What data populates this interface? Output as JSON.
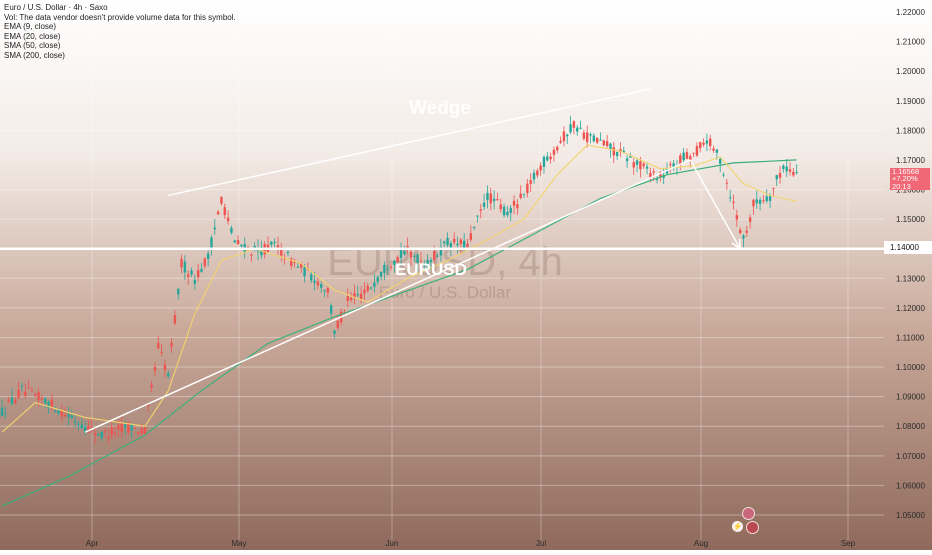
{
  "header": {
    "symbol_line": "Euro / U.S. Dollar · 4h · Saxo",
    "vol_line": "Vol: The data vendor doesn't provide volume data for this symbol.",
    "indicators": [
      "EMA (9, close)",
      "EMA (20, close)",
      "SMA (50, close)",
      "SMA (200, close)"
    ]
  },
  "watermark": {
    "symbol": "EURUSD, 4h",
    "name": "Euro / U.S. Dollar"
  },
  "annotations": {
    "wedge_label": "Wedge",
    "eurusd_label": "EURUSD"
  },
  "price_tag": {
    "price": "1.16568",
    "line2": "+7.20%",
    "line3": "20:13"
  },
  "level_tag": "1.14000",
  "colors": {
    "up": "#26a69a",
    "down": "#ef5350",
    "ema_fast": "#f3d36c",
    "sma_200": "#3cb07a",
    "annotation": "#ffffff",
    "price_tag": "#f06775"
  },
  "chart_data": {
    "type": "candlestick",
    "timeframe": "4h",
    "y_axis": {
      "ticks": [
        "1.22000",
        "1.21000",
        "1.20000",
        "1.19000",
        "1.18000",
        "1.17000",
        "1.16000",
        "1.15000",
        "1.14000",
        "1.13000",
        "1.12000",
        "1.11000",
        "1.10000",
        "1.09000",
        "1.08000",
        "1.07000",
        "1.06000",
        "1.05000"
      ],
      "range": [
        1.0475,
        1.2225
      ]
    },
    "x_axis": {
      "labels": [
        "Apr",
        "May",
        "Jun",
        "Jul",
        "Aug",
        "Sep"
      ]
    },
    "price_path": [
      [
        0,
        1.085
      ],
      [
        6,
        1.092
      ],
      [
        14,
        1.088
      ],
      [
        22,
        1.082
      ],
      [
        30,
        1.077
      ],
      [
        38,
        1.08
      ],
      [
        43,
        1.078
      ],
      [
        47,
        1.107
      ],
      [
        50,
        1.097
      ],
      [
        54,
        1.135
      ],
      [
        58,
        1.13
      ],
      [
        62,
        1.137
      ],
      [
        66,
        1.157
      ],
      [
        70,
        1.142
      ],
      [
        76,
        1.139
      ],
      [
        82,
        1.141
      ],
      [
        88,
        1.135
      ],
      [
        94,
        1.13
      ],
      [
        98,
        1.126
      ],
      [
        100,
        1.112
      ],
      [
        104,
        1.122
      ],
      [
        110,
        1.126
      ],
      [
        116,
        1.135
      ],
      [
        122,
        1.139
      ],
      [
        128,
        1.135
      ],
      [
        134,
        1.142
      ],
      [
        140,
        1.141
      ],
      [
        146,
        1.158
      ],
      [
        152,
        1.152
      ],
      [
        157,
        1.158
      ],
      [
        162,
        1.168
      ],
      [
        167,
        1.175
      ],
      [
        172,
        1.182
      ],
      [
        176,
        1.178
      ],
      [
        180,
        1.176
      ],
      [
        186,
        1.172
      ],
      [
        192,
        1.168
      ],
      [
        198,
        1.164
      ],
      [
        204,
        1.17
      ],
      [
        208,
        1.172
      ],
      [
        212,
        1.177
      ],
      [
        216,
        1.17
      ],
      [
        220,
        1.155
      ],
      [
        223,
        1.143
      ],
      [
        226,
        1.155
      ],
      [
        231,
        1.158
      ],
      [
        235,
        1.168
      ],
      [
        239,
        1.165
      ]
    ],
    "ema": [
      [
        0,
        1.078
      ],
      [
        10,
        1.088
      ],
      [
        25,
        1.083
      ],
      [
        43,
        1.08
      ],
      [
        50,
        1.092
      ],
      [
        58,
        1.118
      ],
      [
        66,
        1.136
      ],
      [
        76,
        1.14
      ],
      [
        90,
        1.135
      ],
      [
        100,
        1.126
      ],
      [
        110,
        1.122
      ],
      [
        122,
        1.13
      ],
      [
        134,
        1.136
      ],
      [
        146,
        1.143
      ],
      [
        157,
        1.15
      ],
      [
        167,
        1.165
      ],
      [
        176,
        1.175
      ],
      [
        186,
        1.173
      ],
      [
        198,
        1.167
      ],
      [
        208,
        1.168
      ],
      [
        216,
        1.171
      ],
      [
        223,
        1.162
      ],
      [
        231,
        1.158
      ],
      [
        239,
        1.156
      ]
    ],
    "sma200": [
      [
        0,
        1.053
      ],
      [
        20,
        1.063
      ],
      [
        43,
        1.077
      ],
      [
        60,
        1.092
      ],
      [
        80,
        1.108
      ],
      [
        100,
        1.117
      ],
      [
        120,
        1.125
      ],
      [
        140,
        1.133
      ],
      [
        160,
        1.145
      ],
      [
        180,
        1.157
      ],
      [
        200,
        1.165
      ],
      [
        220,
        1.169
      ],
      [
        239,
        1.17
      ]
    ],
    "drawings": {
      "wedge_upper": [
        [
          50,
          1.158
        ],
        [
          195,
          1.194
        ]
      ],
      "wedge_lower": [
        [
          25,
          1.078
        ],
        [
          207,
          1.17
        ]
      ],
      "support_level": 1.14,
      "projection": [
        [
          207,
          1.17
        ],
        [
          222,
          1.14
        ]
      ]
    },
    "grid": true
  }
}
